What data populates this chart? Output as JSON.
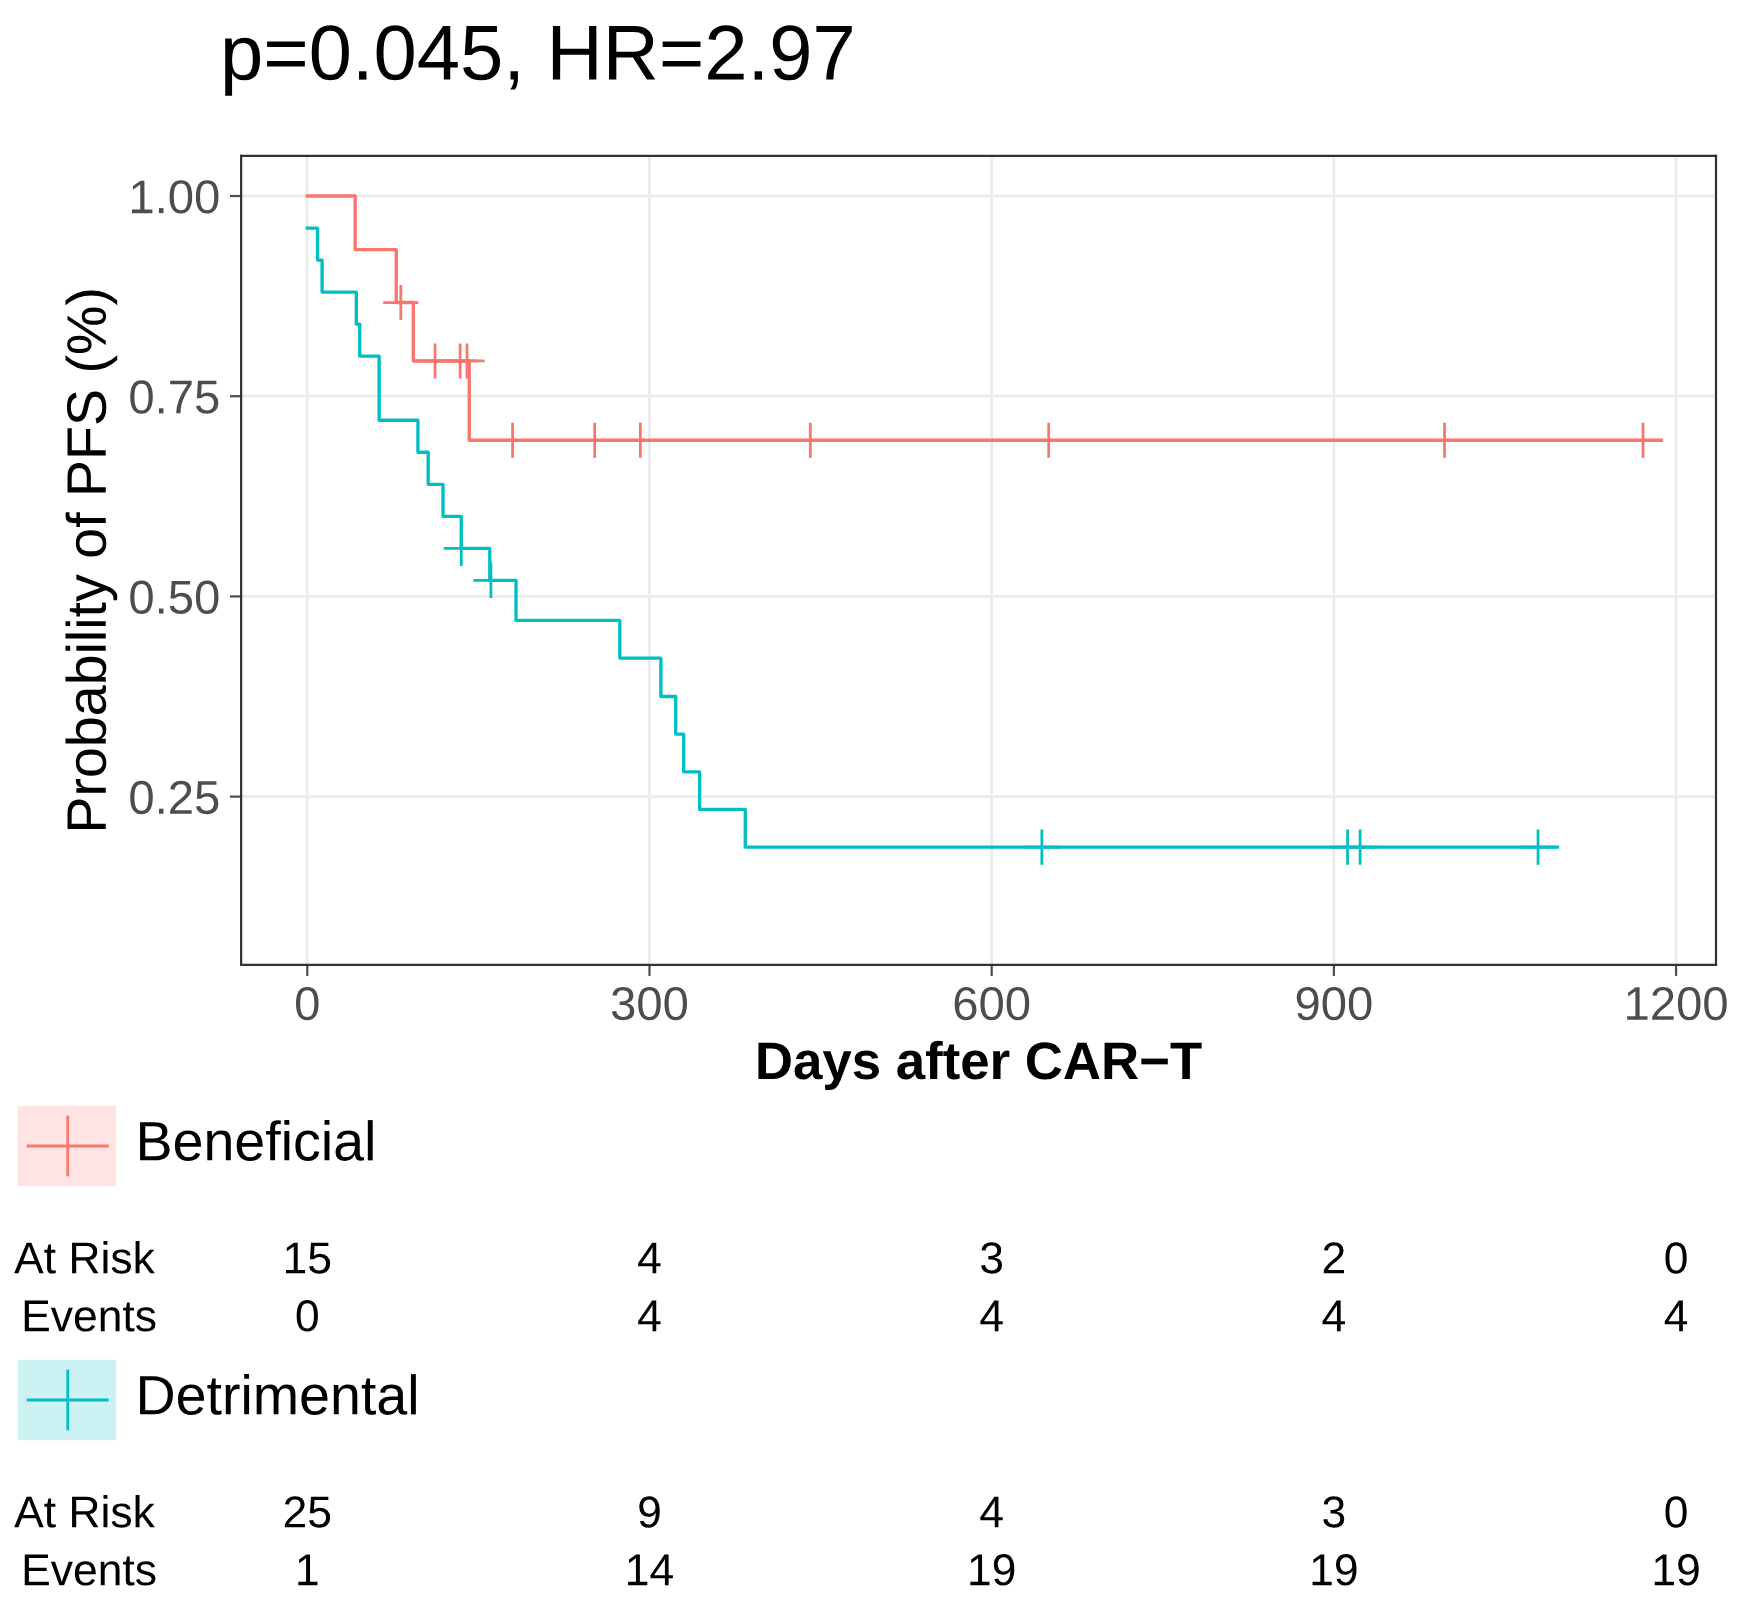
{
  "chart_data": {
    "type": "step",
    "title": "p=0.045, HR=2.97",
    "xlabel": "Days after CAR−T",
    "ylabel": "Probability of PFS (%)",
    "xlim": [
      -58,
      1235
    ],
    "ylim": [
      0.04,
      1.05
    ],
    "xticks": [
      0,
      300,
      600,
      900,
      1200
    ],
    "yticks": [
      0.25,
      {
        "value": 0.5,
        "label": "0.50"
      },
      0.75,
      {
        "value": 1.0,
        "label": "1.00"
      }
    ],
    "grid": true,
    "legend": "bottom",
    "line_style": "solid",
    "series": [
      {
        "name": "Beneficial",
        "color": "#f8766d",
        "x": [
          0,
          42,
          78,
          93,
          142,
          1187
        ],
        "values": [
          1.0,
          0.933,
          0.867,
          0.794,
          0.695,
          0.695
        ]
      },
      {
        "name": "Detrimental",
        "color": "#00bfc4",
        "x": [
          0,
          9,
          13,
          43,
          46,
          63,
          97,
          106,
          119,
          135,
          160,
          183,
          274,
          310,
          323,
          330,
          344,
          384,
          1096
        ],
        "values": [
          0.96,
          0.92,
          0.88,
          0.84,
          0.8,
          0.72,
          0.68,
          0.64,
          0.6,
          0.56,
          0.52,
          0.47,
          0.423,
          0.375,
          0.328,
          0.281,
          0.234,
          0.187,
          0.187
        ]
      },
      {
        "color": "#f8766d",
        "type": "scatter",
        "marker": "cross",
        "x": [
          82,
          112,
          134,
          140,
          180,
          252,
          292,
          441,
          650,
          997,
          1171
        ],
        "values": [
          0.867,
          0.794,
          0.794,
          0.794,
          0.695,
          0.695,
          0.695,
          0.695,
          0.695,
          0.695,
          0.695
        ]
      },
      {
        "color": "#00bfc4",
        "type": "scatter",
        "marker": "cross",
        "x": [
          135,
          161,
          644,
          912,
          923,
          1079
        ],
        "values": [
          0.56,
          0.52,
          0.187,
          0.187,
          0.187,
          0.187
        ]
      }
    ],
    "annotations": [
      "At Risk\t15\t4\t3\t2\t0",
      "Events\t0\t4\t4\t4\t4",
      "At Risk\t25\t9\t4\t3\t0",
      "Events\t1\t14\t19\t19\t19"
    ]
  }
}
